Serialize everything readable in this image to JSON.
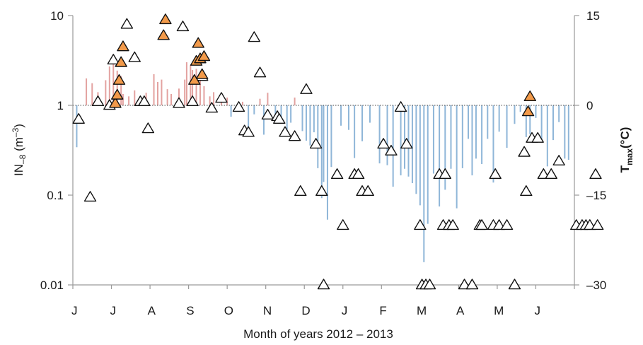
{
  "chart_data": {
    "type": "scatter",
    "xlabel": "Month of years 2012 – 2013",
    "x_tick_labels": [
      "J",
      "J",
      "A",
      "S",
      "O",
      "N",
      "D",
      "J",
      "F",
      "M",
      "A",
      "M",
      "J"
    ],
    "y_left": {
      "label_main": "IN",
      "label_sub": "–8",
      "label_unit": " (m",
      "label_unit_sup": "–3",
      "label_close": ")",
      "scale": "log",
      "ylim": [
        0.01,
        10
      ],
      "ticks": [
        0.01,
        0.1,
        1,
        10
      ],
      "tick_labels": [
        "0.01",
        "0.1",
        "1",
        "10"
      ]
    },
    "y_right": {
      "label_main": "T",
      "label_sub": "max",
      "label_unit": "(°C)",
      "ylim": [
        -30,
        15
      ],
      "ticks": [
        -30,
        -15,
        0,
        15
      ],
      "tick_labels": [
        "–30",
        "–15",
        "0",
        "15"
      ]
    },
    "reference_line": {
      "y_right": 0,
      "style": "dotted"
    },
    "colors": {
      "warm_bar": "#e3a2a0",
      "cold_bar": "#8fb6d8",
      "orange_marker": "#f29a4a",
      "white_marker": "#ffffff",
      "axis": "#9a9a9a"
    },
    "x_domain_months": [
      0,
      13
    ],
    "series": [
      {
        "type": "bar",
        "axis": "right",
        "points": [
          [
            0.1,
            -7
          ],
          [
            0.35,
            4.5
          ],
          [
            0.5,
            3.7
          ],
          [
            0.65,
            2.2
          ],
          [
            0.85,
            4.2
          ],
          [
            0.95,
            6.5
          ],
          [
            1.05,
            7.4
          ],
          [
            1.15,
            5.8
          ],
          [
            1.25,
            4.9
          ],
          [
            1.3,
            1.9
          ],
          [
            1.45,
            1.5
          ],
          [
            1.6,
            2.5
          ],
          [
            1.8,
            0.8
          ],
          [
            1.9,
            2.1
          ],
          [
            2.1,
            5.2
          ],
          [
            2.2,
            3.9
          ],
          [
            2.3,
            4.3
          ],
          [
            2.45,
            2.7
          ],
          [
            2.55,
            1.9
          ],
          [
            2.75,
            2.8
          ],
          [
            2.9,
            4.3
          ],
          [
            2.95,
            7.2
          ],
          [
            3.05,
            6.7
          ],
          [
            3.1,
            5.9
          ],
          [
            3.2,
            6.1
          ],
          [
            3.3,
            5.5
          ],
          [
            3.4,
            3.2
          ],
          [
            3.55,
            1.5
          ],
          [
            3.65,
            2.2
          ],
          [
            3.85,
            1.2
          ],
          [
            4.0,
            1.3
          ],
          [
            4.1,
            -1.9
          ],
          [
            4.25,
            -0.8
          ],
          [
            4.4,
            0.6
          ],
          [
            4.55,
            -3.9
          ],
          [
            4.7,
            -1.5
          ],
          [
            4.85,
            1.1
          ],
          [
            4.95,
            -4.9
          ],
          [
            5.05,
            2.1
          ],
          [
            5.25,
            -3.1
          ],
          [
            5.4,
            -2.7
          ],
          [
            5.55,
            -4.9
          ],
          [
            5.65,
            -2.9
          ],
          [
            5.75,
            1.3
          ],
          [
            5.95,
            -4.3
          ],
          [
            6.05,
            -5.9
          ],
          [
            6.15,
            -6.7
          ],
          [
            6.25,
            -4.5
          ],
          [
            6.35,
            -10.5
          ],
          [
            6.45,
            -15.5
          ],
          [
            6.5,
            -12.8
          ],
          [
            6.6,
            -19.1
          ],
          [
            6.7,
            -10.3
          ],
          [
            6.95,
            -3.4
          ],
          [
            7.15,
            -4.1
          ],
          [
            7.3,
            -8.8
          ],
          [
            7.5,
            -6.0
          ],
          [
            7.7,
            -2.9
          ],
          [
            7.95,
            -9.7
          ],
          [
            8.15,
            -10.0
          ],
          [
            8.3,
            -13.6
          ],
          [
            8.5,
            -11.7
          ],
          [
            8.6,
            -10.6
          ],
          [
            8.7,
            -11.9
          ],
          [
            8.8,
            -13.0
          ],
          [
            8.9,
            -14.8
          ],
          [
            9.0,
            -16.7
          ],
          [
            9.1,
            -26.2
          ],
          [
            9.2,
            -19.8
          ],
          [
            9.35,
            -11.4
          ],
          [
            9.5,
            -16.9
          ],
          [
            9.65,
            -14.1
          ],
          [
            9.8,
            -10.6
          ],
          [
            9.95,
            -17.2
          ],
          [
            10.1,
            -10.5
          ],
          [
            10.25,
            -5.6
          ],
          [
            10.35,
            -11.7
          ],
          [
            10.45,
            -8.9
          ],
          [
            10.6,
            -9.8
          ],
          [
            10.75,
            -5.6
          ],
          [
            10.9,
            -12.9
          ],
          [
            11.05,
            -4.4
          ],
          [
            11.25,
            -7.1
          ],
          [
            11.45,
            -3.1
          ],
          [
            11.6,
            -1.1
          ],
          [
            11.75,
            -5.3
          ],
          [
            11.85,
            -4.8
          ],
          [
            12.0,
            -2.1
          ],
          [
            12.15,
            -6.2
          ],
          [
            12.3,
            -10.2
          ],
          [
            12.45,
            -5.8
          ],
          [
            12.6,
            -2.8
          ],
          [
            12.75,
            -8.9
          ],
          [
            12.85,
            -9.1
          ]
        ]
      },
      {
        "name": "orange",
        "type": "scatter",
        "axis": "left",
        "marker": "triangle",
        "points": [
          [
            1.1,
            1.05
          ],
          [
            1.15,
            1.3
          ],
          [
            1.2,
            1.9
          ],
          [
            1.25,
            3.0
          ],
          [
            1.3,
            4.5
          ],
          [
            2.35,
            6.0
          ],
          [
            2.4,
            9.0
          ],
          [
            3.15,
            1.9
          ],
          [
            3.2,
            3.1
          ],
          [
            3.25,
            4.9
          ],
          [
            3.3,
            3.3
          ],
          [
            3.35,
            2.2
          ],
          [
            3.4,
            3.5
          ],
          [
            11.8,
            0.85
          ],
          [
            11.85,
            1.25
          ]
        ]
      },
      {
        "name": "white",
        "type": "scatter",
        "axis": "left",
        "marker": "triangle",
        "points": [
          [
            0.15,
            0.7
          ],
          [
            0.45,
            0.095
          ],
          [
            0.65,
            1.1
          ],
          [
            0.95,
            1.0
          ],
          [
            1.05,
            3.2
          ],
          [
            1.4,
            8.0
          ],
          [
            1.6,
            3.4
          ],
          [
            1.75,
            1.1
          ],
          [
            1.85,
            1.1
          ],
          [
            1.95,
            0.55
          ],
          [
            2.75,
            1.05
          ],
          [
            2.85,
            7.5
          ],
          [
            3.1,
            1.1
          ],
          [
            3.35,
            2.1
          ],
          [
            3.6,
            0.93
          ],
          [
            3.85,
            1.2
          ],
          [
            4.3,
            0.95
          ],
          [
            4.45,
            0.52
          ],
          [
            4.55,
            0.5
          ],
          [
            4.7,
            5.7
          ],
          [
            4.85,
            2.3
          ],
          [
            5.05,
            0.78
          ],
          [
            5.3,
            0.75
          ],
          [
            5.35,
            0.7
          ],
          [
            5.5,
            0.5
          ],
          [
            5.75,
            0.45
          ],
          [
            5.9,
            0.11
          ],
          [
            6.05,
            1.5
          ],
          [
            6.3,
            0.37
          ],
          [
            6.45,
            0.11
          ],
          [
            6.5,
            0.01
          ],
          [
            6.85,
            0.17
          ],
          [
            7.0,
            0.046
          ],
          [
            7.3,
            0.17
          ],
          [
            7.4,
            0.17
          ],
          [
            7.5,
            0.11
          ],
          [
            7.65,
            0.11
          ],
          [
            8.05,
            0.37
          ],
          [
            8.25,
            0.31
          ],
          [
            8.5,
            0.95
          ],
          [
            8.65,
            0.37
          ],
          [
            9.0,
            0.046
          ],
          [
            9.05,
            0.01
          ],
          [
            9.15,
            0.01
          ],
          [
            9.25,
            0.01
          ],
          [
            9.5,
            0.17
          ],
          [
            9.6,
            0.046
          ],
          [
            9.65,
            0.17
          ],
          [
            9.75,
            0.046
          ],
          [
            9.85,
            0.046
          ],
          [
            10.15,
            0.01
          ],
          [
            10.35,
            0.01
          ],
          [
            10.55,
            0.046
          ],
          [
            10.6,
            0.046
          ],
          [
            10.9,
            0.046
          ],
          [
            10.95,
            0.17
          ],
          [
            11.05,
            0.046
          ],
          [
            11.25,
            0.046
          ],
          [
            11.45,
            0.01
          ],
          [
            11.7,
            0.3
          ],
          [
            11.75,
            0.11
          ],
          [
            11.9,
            0.43
          ],
          [
            12.05,
            0.43
          ],
          [
            12.2,
            0.17
          ],
          [
            12.4,
            0.17
          ],
          [
            12.6,
            0.24
          ],
          [
            13.05,
            0.046
          ],
          [
            13.2,
            0.046
          ],
          [
            13.3,
            0.046
          ],
          [
            13.4,
            0.046
          ],
          [
            13.55,
            0.17
          ],
          [
            13.6,
            0.046
          ]
        ]
      }
    ]
  }
}
